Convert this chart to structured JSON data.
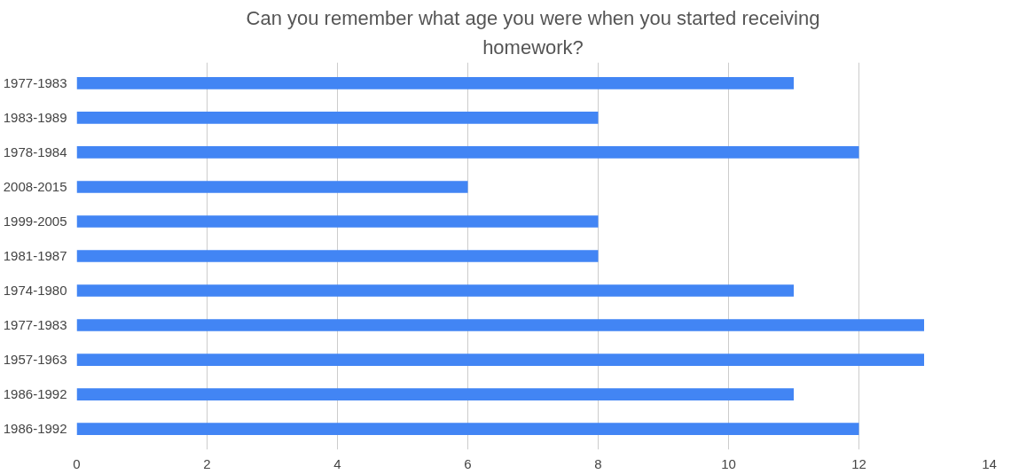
{
  "chart_data": {
    "type": "bar",
    "orientation": "horizontal",
    "title": "Can you remember what age you were when you started receiving\nhomework?",
    "categories": [
      "1977-1983",
      "1983-1989",
      "1978-1984",
      "2008-2015",
      "1999-2005",
      "1981-1987",
      "1974-1980",
      "1977-1983",
      "1957-1963",
      "1986-1992",
      "1986-1992"
    ],
    "values": [
      11,
      8,
      12,
      6,
      8,
      8,
      11,
      13,
      13,
      11,
      12
    ],
    "color": "#4285f4",
    "xlim": [
      0,
      14
    ],
    "xticks": [
      0,
      2,
      4,
      6,
      8,
      10,
      12,
      14
    ],
    "grid": "x"
  }
}
